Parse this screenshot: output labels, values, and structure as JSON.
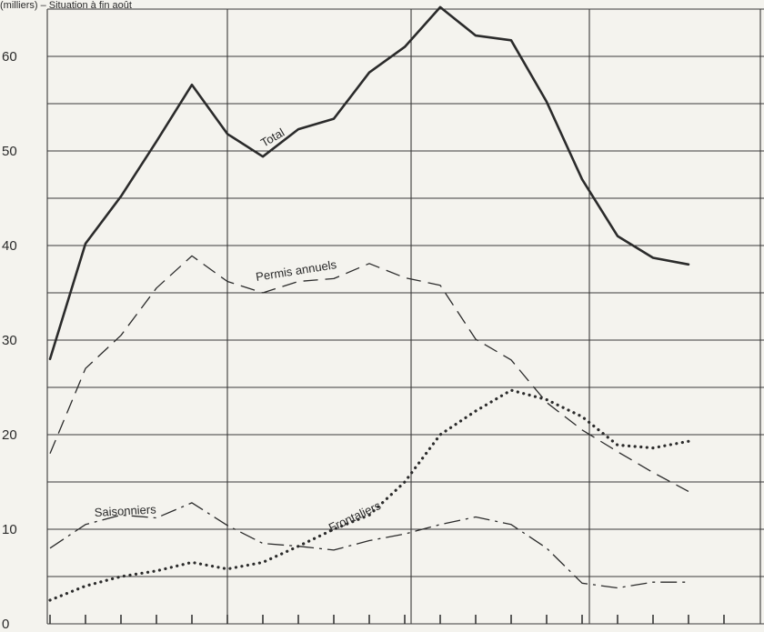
{
  "chart_data": {
    "type": "line",
    "header": "(milliers) – Situation à fin août",
    "ylim": [
      0,
      65
    ],
    "y_ticks": [
      0,
      10,
      20,
      30,
      40,
      50,
      60
    ],
    "grid": true,
    "x": [
      0,
      1,
      2,
      3,
      4,
      5,
      6,
      7,
      8,
      9,
      10,
      11,
      12,
      13,
      14,
      15,
      16,
      17,
      18
    ],
    "series": [
      {
        "name": "Total",
        "style": "solid",
        "values": [
          28,
          40.2,
          45.2,
          51,
          57,
          51.8,
          49.4,
          52.3,
          53.4,
          58.3,
          61,
          65.2,
          62.2,
          61.7,
          55.2,
          47,
          41,
          38.7,
          38
        ]
      },
      {
        "name": "Permis annuels",
        "style": "dashed",
        "values": [
          18,
          27,
          30.5,
          35.5,
          38.9,
          36.2,
          35,
          36.2,
          36.5,
          38.1,
          36.6,
          35.8,
          30.1,
          27.9,
          23.4,
          20.5,
          18.2,
          16,
          14
        ]
      },
      {
        "name": "Saisonniers",
        "style": "dashdot",
        "values": [
          8,
          10.5,
          11.5,
          11.2,
          12.8,
          10.4,
          8.5,
          8.2,
          7.8,
          8.8,
          9.5,
          10.5,
          11.3,
          10.5,
          8,
          4.3,
          3.8,
          4.4,
          4.4
        ]
      },
      {
        "name": "Frontaliers",
        "style": "dotted",
        "values": [
          2.5,
          4.0,
          5.0,
          5.6,
          6.5,
          5.8,
          6.5,
          8.2,
          10,
          11.5,
          15,
          20,
          22.5,
          24.7,
          23.7,
          21.9,
          18.9,
          18.6,
          19.3
        ]
      }
    ]
  }
}
